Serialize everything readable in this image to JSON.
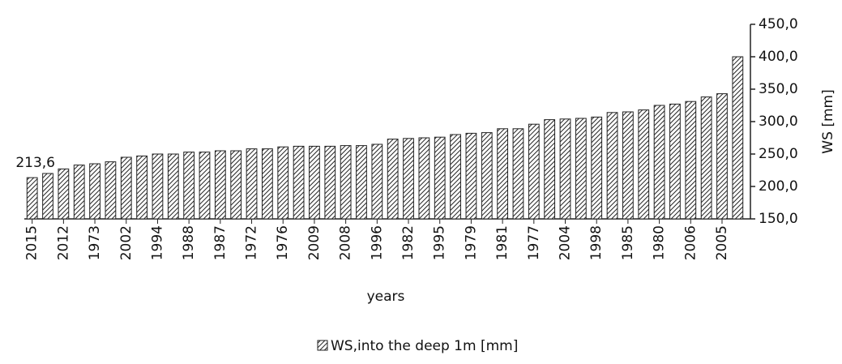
{
  "chart_data": {
    "type": "bar",
    "categories": [
      "2015",
      null,
      "2012",
      null,
      "1973",
      null,
      "2002",
      null,
      "1994",
      null,
      "1988",
      null,
      "1987",
      null,
      "1972",
      null,
      "1976",
      null,
      "2009",
      null,
      "2008",
      null,
      "1996",
      null,
      "1982",
      null,
      "1995",
      null,
      "1979",
      null,
      "1981",
      null,
      "1977",
      null,
      "2004",
      null,
      "1998",
      null,
      "1985",
      null,
      "1980",
      null,
      "2006",
      null,
      "2005",
      null
    ],
    "values": [
      213.6,
      220,
      227,
      233,
      235,
      238,
      245,
      247,
      250,
      250,
      253,
      253,
      255,
      255,
      258,
      258,
      261,
      262,
      262,
      262,
      263,
      263,
      265,
      273,
      274,
      275,
      276,
      280,
      282,
      283,
      289,
      289,
      296,
      303,
      304,
      305,
      307,
      314,
      315,
      318,
      325,
      327,
      331,
      338,
      343,
      400
    ],
    "value_labels": [
      "213,6",
      null,
      null,
      null,
      null,
      null,
      null,
      null,
      null,
      null,
      null,
      null,
      null,
      null,
      null,
      null,
      null,
      null,
      null,
      null,
      null,
      null,
      null,
      null,
      null,
      null,
      null,
      null,
      null,
      null,
      null,
      null,
      null,
      null,
      null,
      null,
      null,
      null,
      null,
      null,
      null,
      null,
      null,
      null,
      null,
      null
    ],
    "color": "#222222",
    "series_name": "WS,into the deep 1m [mm]",
    "xlabel": "years",
    "ylabel": "WS [mm]",
    "ylim": [
      150,
      450
    ],
    "yticks": [
      {
        "value": 150,
        "label": "150,0"
      },
      {
        "value": 200,
        "label": "200,0"
      },
      {
        "value": 250,
        "label": "250,0"
      },
      {
        "value": 300,
        "label": "300,0"
      },
      {
        "value": 350,
        "label": "350,0"
      },
      {
        "value": 400,
        "label": "400,0"
      },
      {
        "value": 450,
        "label": "450,0"
      }
    ],
    "y_axis_side": "right"
  }
}
